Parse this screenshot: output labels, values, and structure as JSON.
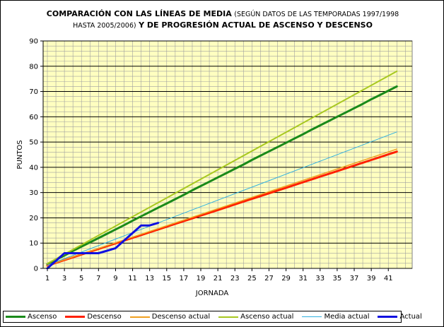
{
  "chart_data": {
    "type": "line",
    "title_bold_1": "COMPARACIÓN CON LAS LÍNEAS DE MEDIA",
    "title_small": "(SEGÚN DATOS DE LAS TEMPORADAS 1997/1998 HASTA 2005/2006)",
    "title_bold_2": "Y DE PROGRESIÓN ACTUAL DE ASCENSO Y DESCENSO",
    "xlabel": "JORNADA",
    "ylabel": "PUNTOS",
    "xlim": [
      1,
      42
    ],
    "ylim": [
      0,
      90
    ],
    "x_ticks": [
      1,
      3,
      5,
      7,
      9,
      11,
      13,
      15,
      17,
      19,
      21,
      23,
      25,
      27,
      29,
      31,
      33,
      35,
      37,
      39,
      41
    ],
    "y_ticks": [
      0,
      10,
      20,
      30,
      40,
      50,
      60,
      70,
      80,
      90
    ],
    "grid": true,
    "legend_position": "bottom",
    "series": [
      {
        "name": "Ascenso",
        "color": "#1a8a1a",
        "width": 3,
        "x": [
          1,
          2,
          3,
          4,
          5,
          6,
          7,
          8,
          9,
          10,
          11,
          12,
          13,
          14,
          15,
          16,
          17,
          18,
          19,
          20,
          21,
          22,
          23,
          24,
          25,
          26,
          27,
          28,
          29,
          30,
          31,
          32,
          33,
          34,
          35,
          36,
          37,
          38,
          39,
          40,
          41,
          42
        ],
        "y": [
          1.7,
          3.4,
          5.1,
          6.9,
          8.6,
          10.3,
          12.0,
          13.7,
          15.4,
          17.1,
          18.9,
          20.6,
          22.3,
          24.0,
          25.7,
          27.4,
          29.1,
          30.9,
          32.6,
          34.3,
          36.0,
          37.7,
          39.4,
          41.1,
          42.9,
          44.6,
          46.3,
          48.0,
          49.7,
          51.4,
          53.1,
          54.9,
          56.6,
          58.3,
          60.0,
          61.7,
          63.4,
          65.1,
          66.9,
          68.6,
          70.3,
          72.0
        ]
      },
      {
        "name": "Descenso",
        "color": "#ff2000",
        "width": 3,
        "x": [
          1,
          2,
          3,
          4,
          5,
          6,
          7,
          8,
          9,
          10,
          11,
          12,
          13,
          14,
          15,
          16,
          17,
          18,
          19,
          20,
          21,
          22,
          23,
          24,
          25,
          26,
          27,
          28,
          29,
          30,
          31,
          32,
          33,
          34,
          35,
          36,
          37,
          38,
          39,
          40,
          41,
          42
        ],
        "y": [
          1.1,
          2.2,
          3.3,
          4.4,
          5.5,
          6.6,
          7.7,
          8.8,
          9.9,
          11.0,
          12.1,
          13.2,
          14.3,
          15.4,
          16.5,
          17.6,
          18.7,
          19.8,
          20.9,
          22.0,
          23.1,
          24.2,
          25.3,
          26.4,
          27.5,
          28.6,
          29.7,
          30.8,
          31.9,
          33.0,
          34.1,
          35.2,
          36.3,
          37.4,
          38.5,
          39.6,
          40.7,
          41.8,
          42.9,
          44.0,
          45.1,
          46.2
        ]
      },
      {
        "name": "Descenso actual",
        "color": "#f0a020",
        "width": 1.5,
        "x": [
          1,
          42
        ],
        "y": [
          1.15,
          47.2
        ]
      },
      {
        "name": "Ascenso actual",
        "color": "#a8c820",
        "width": 2,
        "x": [
          1,
          42
        ],
        "y": [
          1.9,
          78.0
        ]
      },
      {
        "name": "Media actual",
        "color": "#30b0e0",
        "width": 1,
        "x": [
          1,
          42
        ],
        "y": [
          1.3,
          54.0
        ]
      },
      {
        "name": "Actual",
        "color": "#1010e0",
        "width": 3,
        "x": [
          1,
          2,
          3,
          4,
          5,
          6,
          7,
          8,
          9,
          10,
          11,
          12,
          13,
          14
        ],
        "y": [
          0,
          3,
          6,
          6,
          6,
          6,
          6,
          7,
          8,
          11,
          14,
          17,
          17,
          18
        ]
      }
    ]
  }
}
